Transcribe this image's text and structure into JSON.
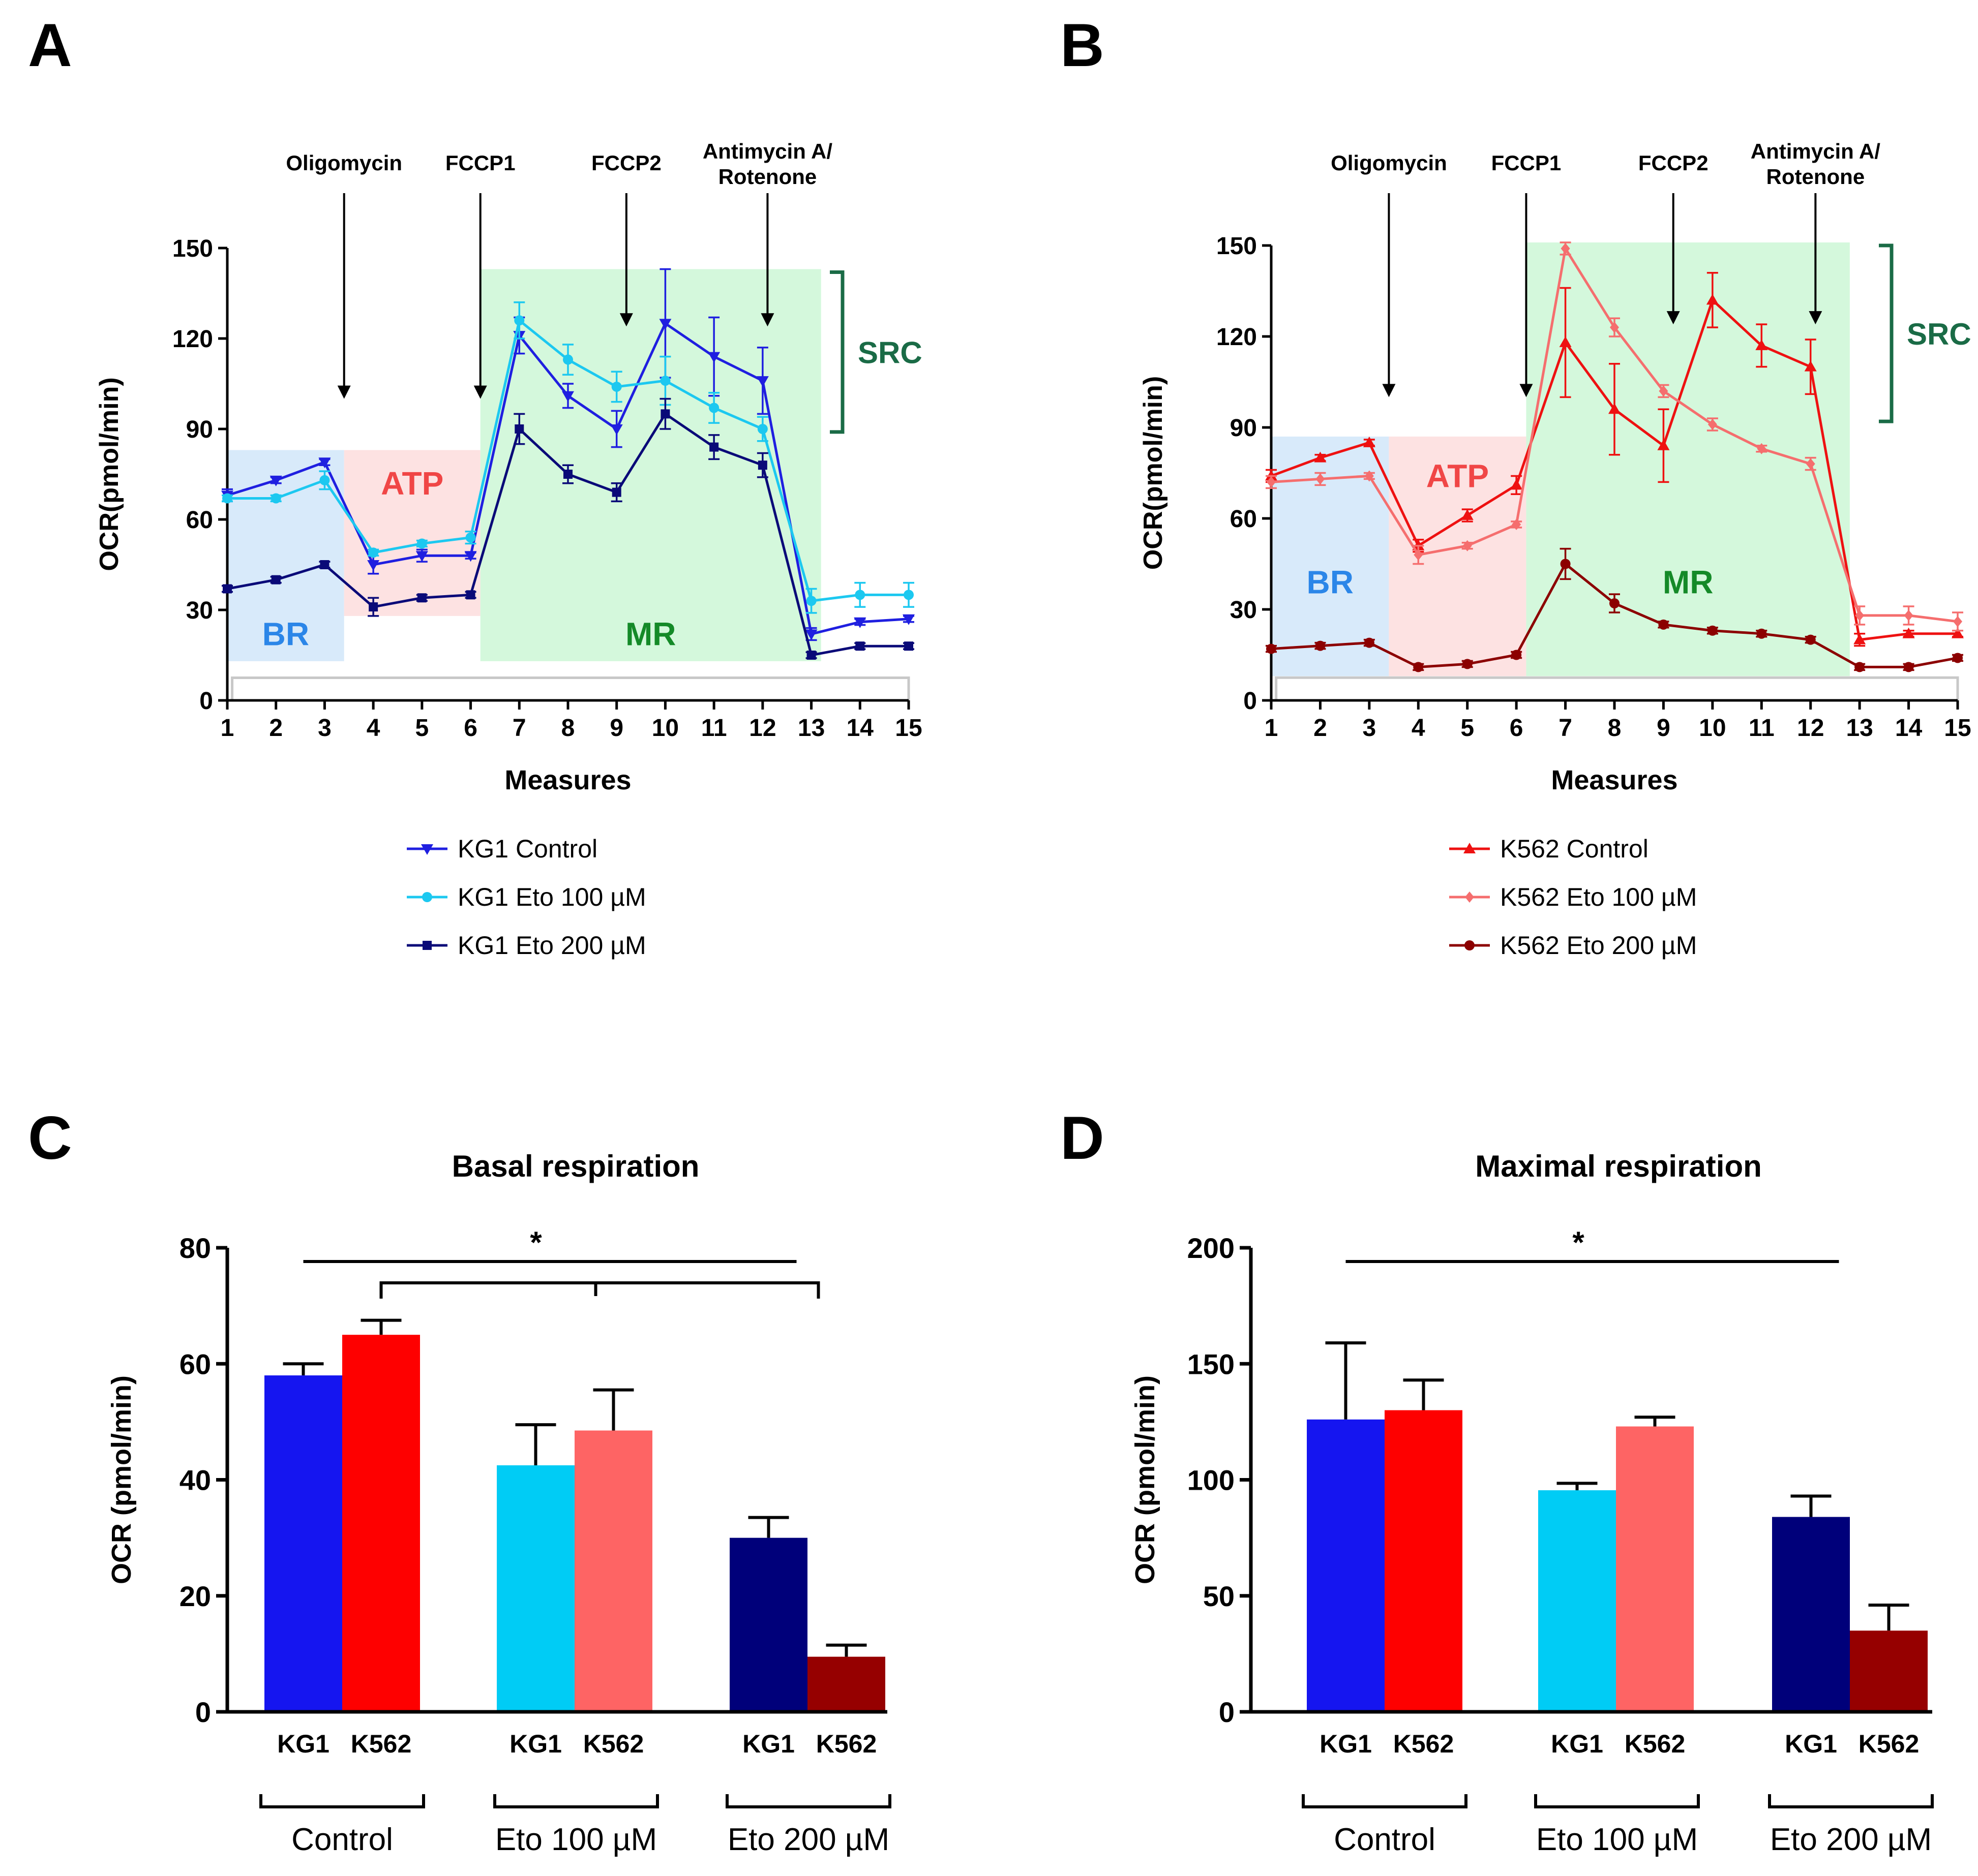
{
  "chart_data": [
    {
      "panel": "A",
      "type": "line",
      "xlabel": "Measures",
      "ylabel": "OCR(pmol/min)",
      "xlim": [
        1,
        15
      ],
      "ylim": [
        0,
        150
      ],
      "x_ticks": [
        "1",
        "2",
        "3",
        "4",
        "5",
        "6",
        "7",
        "8",
        "9",
        "10",
        "11",
        "12",
        "13",
        "14",
        "15"
      ],
      "y_ticks": [
        "0",
        "30",
        "60",
        "90",
        "120",
        "150"
      ],
      "x": [
        1,
        2,
        3,
        4,
        5,
        6,
        7,
        8,
        9,
        10,
        11,
        12,
        13,
        14,
        15
      ],
      "series": [
        {
          "name": "KG1 Control",
          "color": "#1f1fe0",
          "marker": "tri-down",
          "values": [
            68,
            73,
            79,
            45,
            48,
            48,
            121,
            101,
            90,
            125,
            114,
            106,
            22,
            26,
            27
          ],
          "errors": [
            2,
            1,
            1,
            3,
            2,
            1,
            6,
            4,
            6,
            18,
            13,
            11,
            2,
            1,
            1
          ]
        },
        {
          "name": "KG1 Eto 100 µM",
          "color": "#1cc8f0",
          "marker": "circle",
          "values": [
            67,
            67,
            73,
            49,
            52,
            54,
            126,
            113,
            104,
            106,
            97,
            90,
            33,
            35,
            35
          ],
          "errors": [
            1,
            1,
            3,
            1,
            1,
            2,
            6,
            5,
            5,
            8,
            5,
            4,
            4,
            4,
            4
          ]
        },
        {
          "name": "KG1 Eto 200 µM",
          "color": "#0a0a78",
          "marker": "square",
          "values": [
            37,
            40,
            45,
            31,
            34,
            35,
            90,
            75,
            69,
            95,
            84,
            78,
            15,
            18,
            18
          ],
          "errors": [
            1,
            1,
            1,
            3,
            1,
            1,
            5,
            3,
            3,
            5,
            4,
            4,
            1,
            1,
            1
          ]
        }
      ],
      "regions": [
        {
          "label": "BR",
          "from": 1,
          "to": 3.4,
          "ymin": 13,
          "ymax": 83,
          "fill": "#d8eafa",
          "text_color": "#2b86e8",
          "label_y": 22
        },
        {
          "label": "ATP",
          "from": 3.4,
          "to": 6.2,
          "ymin": 28,
          "ymax": 83,
          "fill": "#fde2e2",
          "text_color": "#f04646",
          "label_y": 72
        },
        {
          "label": "MR",
          "from": 6.2,
          "to": 13.2,
          "ymin": 13,
          "ymax": 143,
          "fill": "#d4f8dc",
          "text_color": "#148a28",
          "label_y": 22
        }
      ],
      "injections": [
        {
          "label": "Oligomycin",
          "x": 3.4,
          "arrow_to": 100
        },
        {
          "label": "FCCP1",
          "x": 6.2,
          "arrow_to": 100
        },
        {
          "label": "FCCP2",
          "x": 9.2,
          "arrow_to": 124
        },
        {
          "label": "Antimycin A/",
          "label2": "Rotenone",
          "x": 12.1,
          "arrow_to": 124
        }
      ],
      "src": {
        "label": "SRC",
        "ymin": 89,
        "ymax": 142
      }
    },
    {
      "panel": "B",
      "type": "line",
      "xlabel": "Measures",
      "ylabel": "OCR(pmol/min)",
      "xlim": [
        1,
        15
      ],
      "ylim": [
        0,
        150
      ],
      "x_ticks": [
        "1",
        "2",
        "3",
        "4",
        "5",
        "6",
        "7",
        "8",
        "9",
        "10",
        "11",
        "12",
        "13",
        "14",
        "15"
      ],
      "y_ticks": [
        "0",
        "30",
        "60",
        "90",
        "120",
        "150"
      ],
      "x": [
        1,
        2,
        3,
        4,
        5,
        6,
        7,
        8,
        9,
        10,
        11,
        12,
        13,
        14,
        15
      ],
      "series": [
        {
          "name": "K562 Control",
          "color": "#ee1111",
          "marker": "tri-up",
          "values": [
            74,
            80,
            85,
            51,
            61,
            71,
            118,
            96,
            84,
            132,
            117,
            110,
            20,
            22,
            22
          ],
          "errors": [
            2,
            1,
            1,
            2,
            2,
            3,
            18,
            15,
            12,
            9,
            7,
            9,
            2,
            1,
            1
          ]
        },
        {
          "name": "K562 Eto 100 µM",
          "color": "#f56e6e",
          "marker": "diamond",
          "values": [
            72,
            73,
            74,
            48,
            51,
            58,
            149,
            123,
            102,
            91,
            83,
            78,
            28,
            28,
            26
          ],
          "errors": [
            2,
            2,
            1,
            3,
            1,
            1,
            2,
            3,
            2,
            2,
            1,
            2,
            3,
            3,
            3
          ]
        },
        {
          "name": "K562 Eto 200 µM",
          "color": "#8c0000",
          "marker": "circle",
          "values": [
            17,
            18,
            19,
            11,
            12,
            15,
            45,
            32,
            25,
            23,
            22,
            20,
            11,
            11,
            14
          ],
          "errors": [
            1,
            1,
            1,
            1,
            1,
            1,
            5,
            3,
            1,
            1,
            1,
            1,
            1,
            1,
            1
          ]
        }
      ],
      "regions": [
        {
          "label": "BR",
          "from": 1,
          "to": 3.4,
          "ymin": 8,
          "ymax": 87,
          "fill": "#d8eafa",
          "text_color": "#2b86e8",
          "label_y": 39
        },
        {
          "label": "ATP",
          "from": 3.4,
          "to": 6.2,
          "ymin": 8,
          "ymax": 87,
          "fill": "#fde2e2",
          "text_color": "#f04646",
          "label_y": 74
        },
        {
          "label": "MR",
          "from": 6.2,
          "to": 12.8,
          "ymin": 8,
          "ymax": 151,
          "fill": "#d4f8dc",
          "text_color": "#148a28",
          "label_y": 39
        }
      ],
      "injections": [
        {
          "label": "Oligomycin",
          "x": 3.4,
          "arrow_to": 100
        },
        {
          "label": "FCCP1",
          "x": 6.2,
          "arrow_to": 100
        },
        {
          "label": "FCCP2",
          "x": 9.2,
          "arrow_to": 124
        },
        {
          "label": "Antimycin A/",
          "label2": "Rotenone",
          "x": 12.1,
          "arrow_to": 124
        }
      ],
      "src": {
        "label": "SRC",
        "ymin": 92,
        "ymax": 150
      }
    },
    {
      "panel": "C",
      "type": "bar",
      "title": "Basal respiration",
      "ylabel": "OCR (pmol/min)",
      "ylim": [
        0,
        80
      ],
      "y_ticks": [
        "0",
        "20",
        "40",
        "60",
        "80"
      ],
      "groups": [
        "Control",
        "Eto 100 µM",
        "Eto 200 µM"
      ],
      "bar_labels": [
        "KG1",
        "K562"
      ],
      "bars": [
        {
          "group": 0,
          "label": "KG1",
          "value": 58,
          "error": 2,
          "color": "#1515f0"
        },
        {
          "group": 0,
          "label": "K562",
          "value": 65,
          "error": 2.5,
          "color": "#fe0000"
        },
        {
          "group": 1,
          "label": "KG1",
          "value": 42.5,
          "error": 7,
          "color": "#00ccf5"
        },
        {
          "group": 1,
          "label": "K562",
          "value": 48.5,
          "error": 7,
          "color": "#fe6464"
        },
        {
          "group": 2,
          "label": "KG1",
          "value": 30,
          "error": 3.5,
          "color": "#00007a"
        },
        {
          "group": 2,
          "label": "K562",
          "value": 9.5,
          "error": 2,
          "color": "#960000"
        }
      ],
      "significance": "*"
    },
    {
      "panel": "D",
      "type": "bar",
      "title": "Maximal respiration",
      "ylabel": "OCR (pmol/min)",
      "ylim": [
        0,
        200
      ],
      "y_ticks": [
        "0",
        "50",
        "100",
        "150",
        "200"
      ],
      "groups": [
        "Control",
        "Eto 100 µM",
        "Eto 200 µM"
      ],
      "bar_labels": [
        "KG1",
        "K562"
      ],
      "bars": [
        {
          "group": 0,
          "label": "KG1",
          "value": 126,
          "error": 33,
          "color": "#1515f0"
        },
        {
          "group": 0,
          "label": "K562",
          "value": 130,
          "error": 13,
          "color": "#fe0000"
        },
        {
          "group": 1,
          "label": "KG1",
          "value": 95.5,
          "error": 3,
          "color": "#00ccf5"
        },
        {
          "group": 1,
          "label": "K562",
          "value": 123,
          "error": 4,
          "color": "#fe6464"
        },
        {
          "group": 2,
          "label": "KG1",
          "value": 84,
          "error": 9,
          "color": "#00007a"
        },
        {
          "group": 2,
          "label": "K562",
          "value": 35,
          "error": 11,
          "color": "#960000"
        }
      ],
      "significance": "*"
    }
  ]
}
